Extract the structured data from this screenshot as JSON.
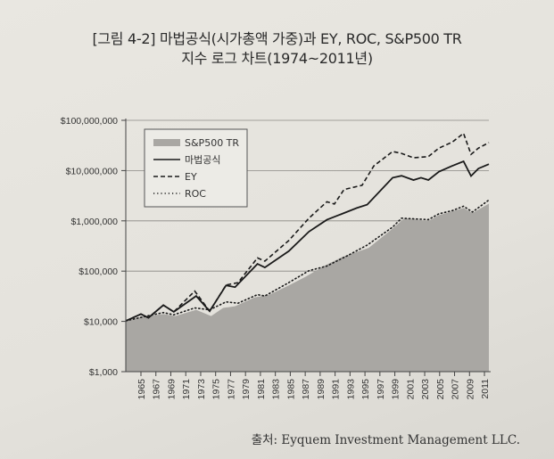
{
  "chart_data": {
    "type": "line",
    "title": "[그림 4-2] 마법공식(시가총액 가중)과 EY, ROC, S&P500 TR",
    "subtitle": "지수 로그 차트(1974~2011년)",
    "xlabel": "",
    "ylabel": "",
    "y_scale": "log",
    "ylim": [
      1000,
      100000000
    ],
    "xlim": [
      1963,
      2011.6
    ],
    "grid": "horizontal",
    "legend_position": "top-left",
    "y_tick_labels": [
      "$1,000",
      "$10,000",
      "$100,000",
      "$1,000,000",
      "$10,000,000",
      "$100,000,000"
    ],
    "y_ticks": [
      1000,
      10000,
      100000,
      1000000,
      10000000,
      100000000
    ],
    "x_tick_labels": [
      "1965",
      "1967",
      "1969",
      "1971",
      "1973",
      "1975",
      "1977",
      "1979",
      "1981",
      "1983",
      "1985",
      "1987",
      "1989",
      "1991",
      "1993",
      "1995",
      "1997",
      "1999",
      "2001",
      "2003",
      "2005",
      "2007",
      "2009",
      "2011"
    ],
    "series": [
      {
        "name": "S&P500 TR",
        "style": "area",
        "color": "#a9a7a3",
        "x": [
          1963,
          1965,
          1968,
          1969.6,
          1972.4,
          1974.4,
          1976,
          1977.6,
          1980.2,
          1982.2,
          1984.8,
          1987.1,
          1989.5,
          1991.9,
          1995.5,
          1998.7,
          2000.3,
          2003.5,
          2004.9,
          2006.7,
          2008.2,
          2009.4,
          2011.6
        ],
        "values": [
          10000,
          12300,
          14000,
          12800,
          17000,
          12800,
          18500,
          20000,
          30000,
          34000,
          52000,
          78000,
          126000,
          190000,
          290000,
          700000,
          1130000,
          990000,
          1300000,
          1550000,
          1800000,
          1430000,
          2200000
        ]
      },
      {
        "name": "마법공식",
        "style": "solid",
        "color": "#1a1a1a",
        "x": [
          1963,
          1965,
          1966,
          1968,
          1969.4,
          1972.4,
          1974.2,
          1976.4,
          1977.6,
          1980.6,
          1981.6,
          1984.8,
          1987.5,
          1989.9,
          1993.9,
          1995.3,
          1998.7,
          1999.9,
          2001.5,
          2002.5,
          2003.5,
          2004.9,
          2006.7,
          2008.2,
          2009.2,
          2010.2,
          2011.6
        ],
        "values": [
          10300,
          14000,
          11800,
          21000,
          15500,
          32000,
          16000,
          52000,
          48000,
          139000,
          118000,
          250000,
          610000,
          1050000,
          1800000,
          2100000,
          7200000,
          7900000,
          6500000,
          7200000,
          6500000,
          9500000,
          12400000,
          15300000,
          7800000,
          11000000,
          13400000
        ]
      },
      {
        "name": "EY",
        "style": "dashed",
        "color": "#1a1a1a",
        "x": [
          1963,
          1965,
          1966,
          1968,
          1969.4,
          1972.2,
          1974.2,
          1976.4,
          1978,
          1980.6,
          1981.6,
          1984.8,
          1987.5,
          1989.9,
          1990.9,
          1992.2,
          1994.6,
          1996.2,
          1998.7,
          1999.9,
          2001.5,
          2003.5,
          2004.9,
          2006.7,
          2008.2,
          2009.2,
          2010.2,
          2011.6
        ],
        "values": [
          10300,
          14000,
          11800,
          21000,
          15500,
          40000,
          16000,
          53000,
          59000,
          183000,
          158000,
          405000,
          1130000,
          2400000,
          2160000,
          4200000,
          5100000,
          12400000,
          24000000,
          22000000,
          18000000,
          19000000,
          28000000,
          37000000,
          55000000,
          21000000,
          28000000,
          36000000
        ]
      },
      {
        "name": "ROC",
        "style": "dotted",
        "color": "#1a1a1a",
        "x": [
          1963,
          1966,
          1968,
          1969.4,
          1972.2,
          1974.2,
          1976.4,
          1978,
          1980.6,
          1981.6,
          1984.8,
          1987.5,
          1989.9,
          1992.7,
          1995.3,
          1998.7,
          1999.9,
          2003.5,
          2004.9,
          2006.7,
          2008.2,
          2009.4,
          2011.6
        ],
        "values": [
          10300,
          13000,
          15000,
          13500,
          18500,
          17000,
          24500,
          23000,
          34000,
          32000,
          59000,
          102000,
          126000,
          204000,
          330000,
          750000,
          1130000,
          1060000,
          1380000,
          1600000,
          1950000,
          1500000,
          2600000
        ]
      }
    ]
  },
  "source": "출처: Eyquem Investment Management LLC."
}
